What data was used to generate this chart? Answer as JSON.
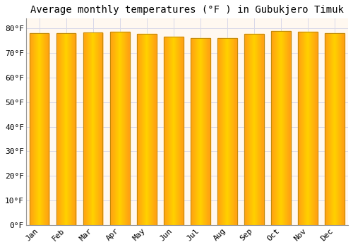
{
  "title": "Average monthly temperatures (°F ) in Gubukjero Timuk",
  "months": [
    "Jan",
    "Feb",
    "Mar",
    "Apr",
    "May",
    "Jun",
    "Jul",
    "Aug",
    "Sep",
    "Oct",
    "Nov",
    "Dec"
  ],
  "values": [
    78.1,
    78.1,
    78.3,
    78.6,
    77.9,
    76.6,
    76.1,
    75.9,
    77.7,
    78.8,
    78.6,
    78.1
  ],
  "bar_color_left": "#FFB300",
  "bar_color_center": "#FFCC44",
  "bar_color_right": "#F5A000",
  "bar_edge_color": "#B8860B",
  "background_color": "#FFFFFF",
  "plot_bg_color": "#FFF8F0",
  "grid_color": "#D8D8E8",
  "yticks": [
    0,
    10,
    20,
    30,
    40,
    50,
    60,
    70,
    80
  ],
  "ylim": [
    0,
    84
  ],
  "title_fontsize": 10,
  "tick_fontsize": 8,
  "font_family": "monospace",
  "bar_width": 0.72
}
